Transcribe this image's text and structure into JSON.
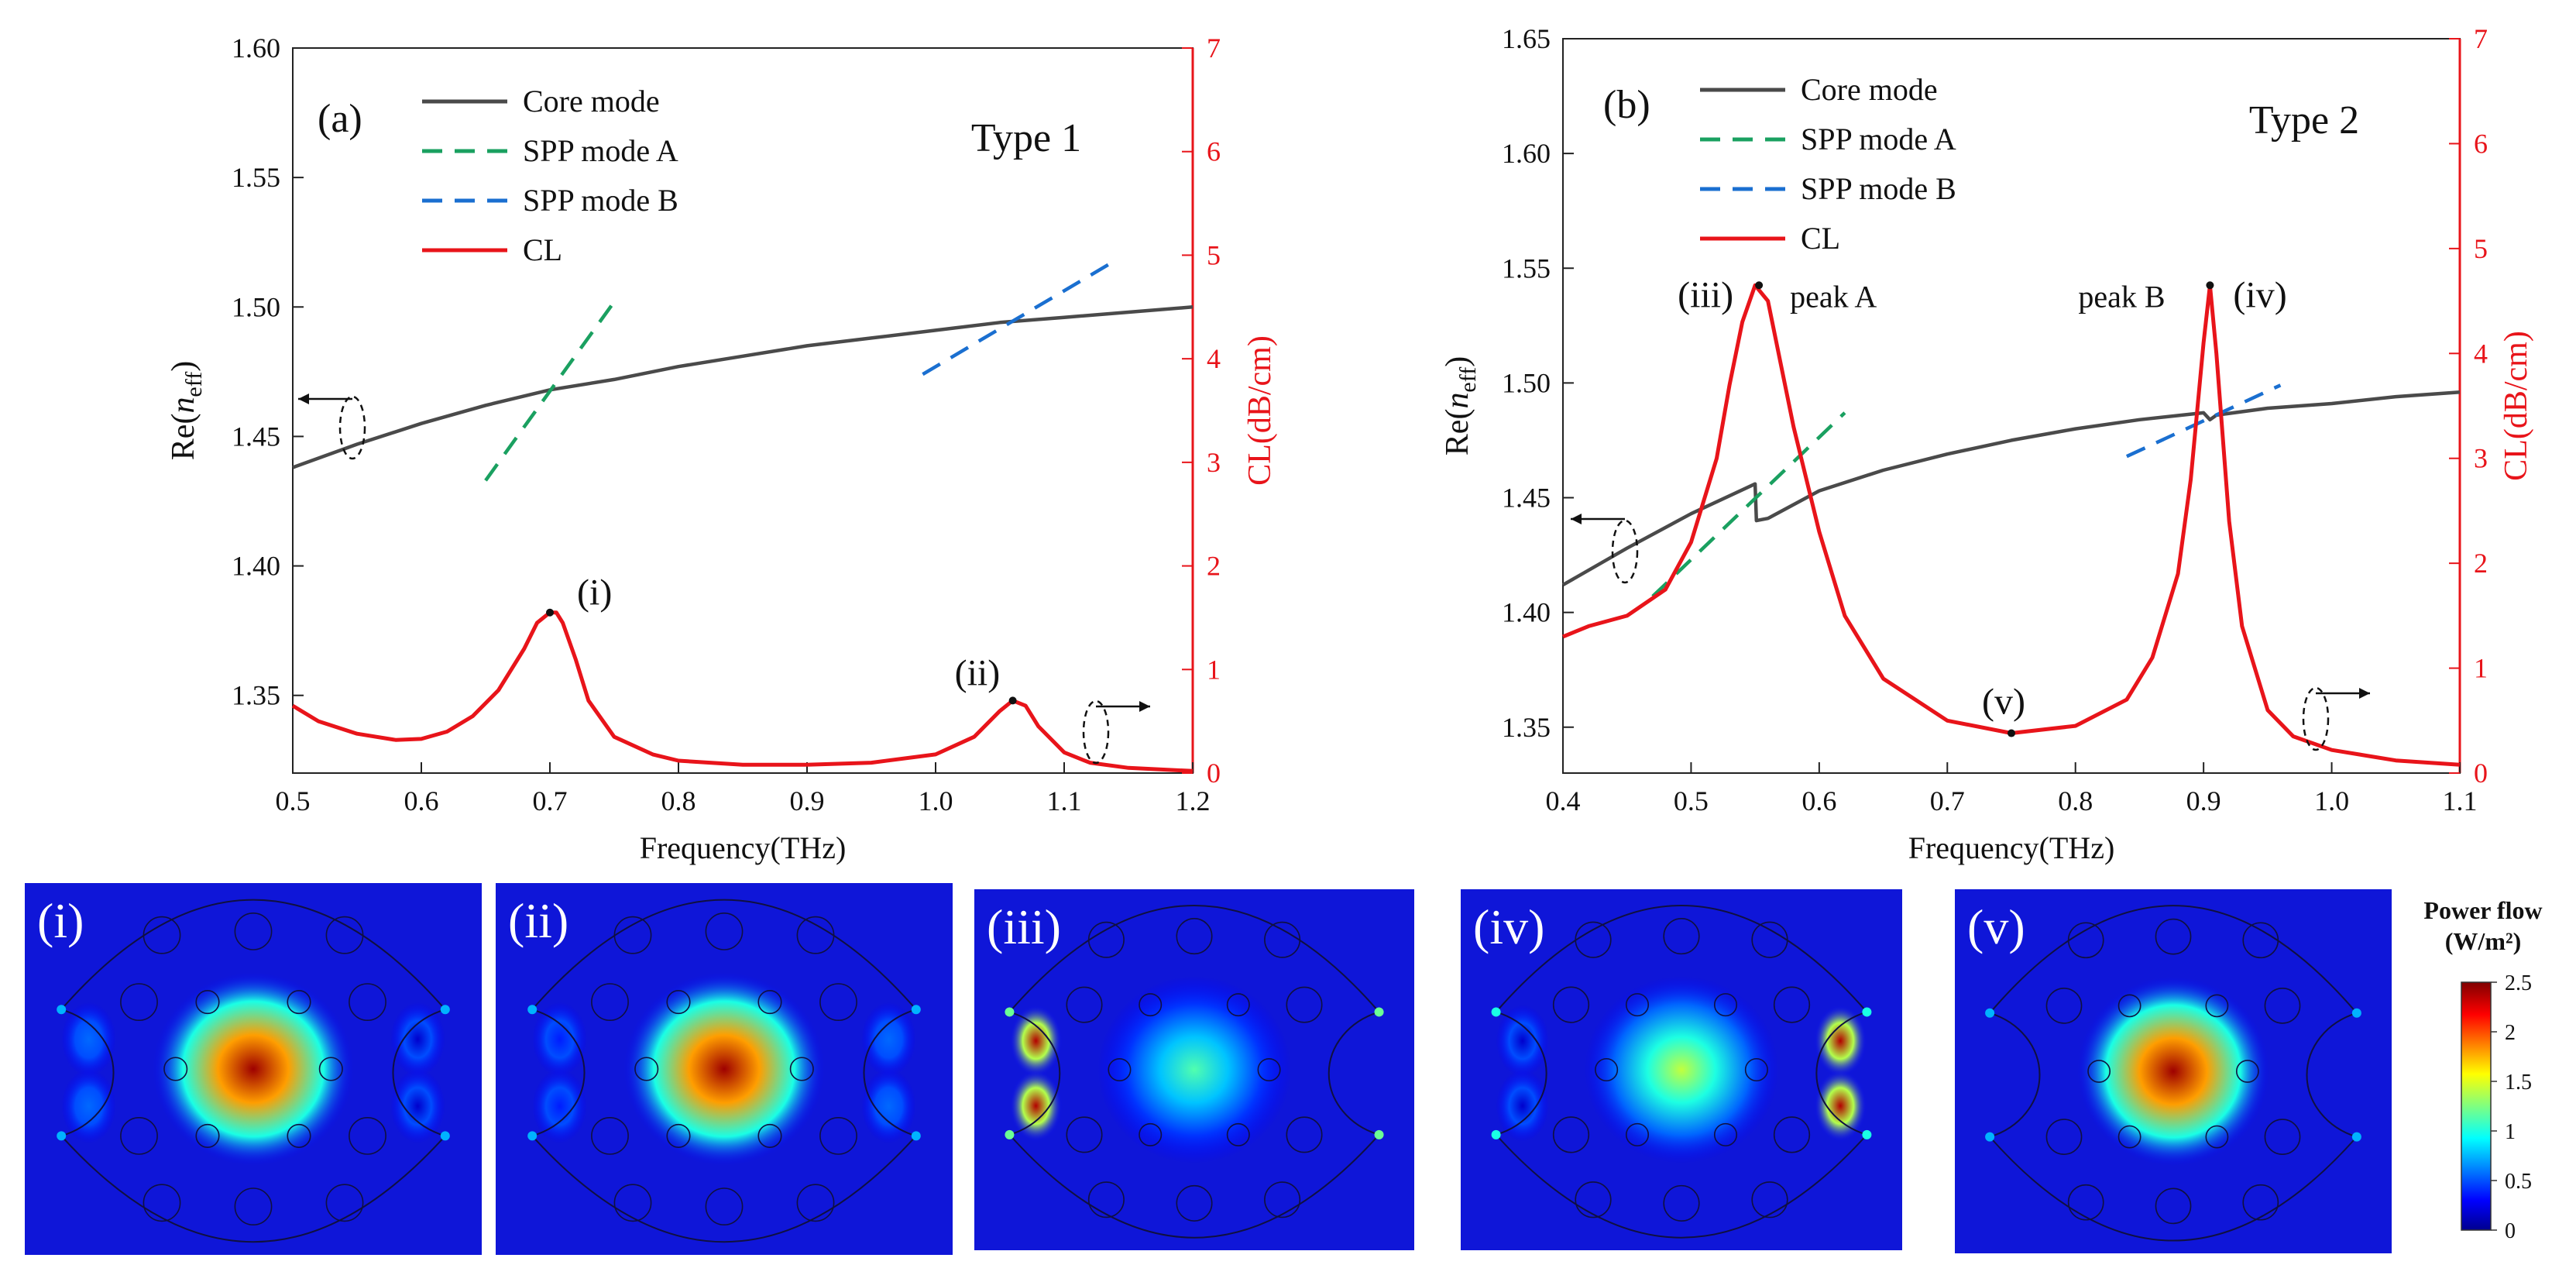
{
  "chart_data": [
    {
      "type": "line",
      "panel_label": "(a)",
      "title": "Type 1",
      "xlabel": "Frequency(THz)",
      "ylabel_left": {
        "main": "Re(",
        "italic": "n",
        "sub": "eff",
        "close": ")"
      },
      "ylabel_right": "CL(dB/cm)",
      "xlim": [
        0.5,
        1.2
      ],
      "ylim_left": [
        1.32,
        1.6
      ],
      "ylim_right": [
        0,
        7
      ],
      "x_ticks": [
        "0.5",
        "0.6",
        "0.7",
        "0.8",
        "0.9",
        "1.0",
        "1.1",
        "1.2"
      ],
      "y_ticks_left": [
        "1.35",
        "1.40",
        "1.45",
        "1.50",
        "1.55",
        "1.60"
      ],
      "y_ticks_right": [
        "0",
        "1",
        "2",
        "3",
        "4",
        "5",
        "6",
        "7"
      ],
      "legend": [
        "Core mode",
        "SPP mode A",
        "SPP mode B",
        "CL"
      ],
      "series": [
        {
          "name": "Core mode",
          "axis": "left",
          "color": "#4a4a4a",
          "x": [
            0.5,
            0.55,
            0.6,
            0.65,
            0.7,
            0.75,
            0.8,
            0.85,
            0.9,
            0.95,
            1.0,
            1.05,
            1.1,
            1.15,
            1.2
          ],
          "y": [
            1.438,
            1.447,
            1.455,
            1.462,
            1.468,
            1.472,
            1.477,
            1.481,
            1.485,
            1.488,
            1.491,
            1.494,
            1.496,
            1.498,
            1.5
          ]
        },
        {
          "name": "SPP mode A",
          "axis": "left",
          "color": "#1aa060",
          "x": [
            0.65,
            0.75
          ],
          "y": [
            1.433,
            1.502
          ]
        },
        {
          "name": "SPP mode B",
          "axis": "left",
          "color": "#1a6fd0",
          "x": [
            0.99,
            1.14
          ],
          "y": [
            1.474,
            1.518
          ]
        },
        {
          "name": "CL",
          "axis": "right",
          "color": "#e8141a",
          "x": [
            0.5,
            0.52,
            0.55,
            0.58,
            0.6,
            0.62,
            0.64,
            0.66,
            0.68,
            0.69,
            0.7,
            0.705,
            0.71,
            0.72,
            0.73,
            0.75,
            0.78,
            0.8,
            0.85,
            0.9,
            0.95,
            1.0,
            1.03,
            1.05,
            1.06,
            1.07,
            1.08,
            1.1,
            1.12,
            1.15,
            1.2
          ],
          "y": [
            0.65,
            0.5,
            0.38,
            0.32,
            0.33,
            0.4,
            0.55,
            0.8,
            1.2,
            1.45,
            1.55,
            1.55,
            1.45,
            1.1,
            0.7,
            0.35,
            0.18,
            0.12,
            0.08,
            0.08,
            0.1,
            0.18,
            0.35,
            0.6,
            0.7,
            0.65,
            0.45,
            0.2,
            0.1,
            0.05,
            0.02
          ]
        }
      ],
      "annotations": [
        {
          "text": "(i)",
          "x": 0.7,
          "y_right": 1.55
        },
        {
          "text": "(ii)",
          "x": 1.06,
          "y_right": 0.7
        }
      ]
    },
    {
      "type": "line",
      "panel_label": "(b)",
      "title": "Type 2",
      "xlabel": "Frequency(THz)",
      "ylabel_left": {
        "main": "Re(",
        "italic": "n",
        "sub": "eff",
        "close": ")"
      },
      "ylabel_right": "CL(dB/cm)",
      "xlim": [
        0.4,
        1.1
      ],
      "ylim_left": [
        1.33,
        1.65
      ],
      "ylim_right": [
        0,
        7
      ],
      "x_ticks": [
        "0.4",
        "0.5",
        "0.6",
        "0.7",
        "0.8",
        "0.9",
        "1.0",
        "1.1"
      ],
      "y_ticks_left": [
        "1.35",
        "1.40",
        "1.45",
        "1.50",
        "1.55",
        "1.60",
        "1.65"
      ],
      "y_ticks_right": [
        "0",
        "1",
        "2",
        "3",
        "4",
        "5",
        "6",
        "7"
      ],
      "legend": [
        "Core mode",
        "SPP mode A",
        "SPP mode B",
        "CL"
      ],
      "series": [
        {
          "name": "Core mode",
          "axis": "left",
          "color": "#4a4a4a",
          "x": [
            0.4,
            0.45,
            0.5,
            0.55,
            0.551,
            0.56,
            0.6,
            0.65,
            0.7,
            0.75,
            0.8,
            0.85,
            0.9,
            0.905,
            0.91,
            0.95,
            1.0,
            1.05,
            1.1
          ],
          "y": [
            1.412,
            1.428,
            1.443,
            1.456,
            1.44,
            1.441,
            1.453,
            1.462,
            1.469,
            1.475,
            1.48,
            1.484,
            1.487,
            1.484,
            1.486,
            1.489,
            1.491,
            1.494,
            1.496
          ]
        },
        {
          "name": "SPP mode A",
          "axis": "left",
          "color": "#1aa060",
          "x": [
            0.47,
            0.62
          ],
          "y": [
            1.407,
            1.487
          ]
        },
        {
          "name": "SPP mode B",
          "axis": "left",
          "color": "#1a6fd0",
          "x": [
            0.84,
            0.96
          ],
          "y": [
            1.468,
            1.499
          ]
        },
        {
          "name": "CL",
          "axis": "right",
          "color": "#e8141a",
          "x": [
            0.4,
            0.42,
            0.45,
            0.48,
            0.5,
            0.52,
            0.53,
            0.54,
            0.55,
            0.56,
            0.57,
            0.58,
            0.6,
            0.62,
            0.65,
            0.7,
            0.75,
            0.8,
            0.84,
            0.86,
            0.88,
            0.89,
            0.9,
            0.905,
            0.91,
            0.92,
            0.93,
            0.95,
            0.97,
            1.0,
            1.05,
            1.1
          ],
          "y": [
            1.3,
            1.4,
            1.5,
            1.75,
            2.2,
            3.0,
            3.7,
            4.3,
            4.65,
            4.5,
            3.9,
            3.3,
            2.3,
            1.5,
            0.9,
            0.5,
            0.38,
            0.45,
            0.7,
            1.1,
            1.9,
            2.8,
            4.1,
            4.65,
            4.0,
            2.4,
            1.4,
            0.6,
            0.35,
            0.22,
            0.12,
            0.08
          ]
        }
      ],
      "annotations": [
        {
          "text": "(iii)",
          "x": 0.553,
          "y_right": 4.65
        },
        {
          "text": "peak A",
          "x": 0.553,
          "y_right": 4.65
        },
        {
          "text": "(iv)",
          "x": 0.905,
          "y_right": 4.65
        },
        {
          "text": "peak B",
          "x": 0.905,
          "y_right": 4.65
        },
        {
          "text": "(v)",
          "x": 0.75,
          "y_right": 0.38
        }
      ]
    }
  ],
  "field_maps": [
    {
      "label": "(i)",
      "core_intensity": 2.5,
      "left_edge_intensity": 0.6,
      "right_edge_intensity": 0.2,
      "corner_glow": 0.3
    },
    {
      "label": "(ii)",
      "core_intensity": 2.5,
      "left_edge_intensity": 0.4,
      "right_edge_intensity": 0.6,
      "corner_glow": 0.3
    },
    {
      "label": "(iii)",
      "core_intensity": 1.1,
      "left_edge_intensity": 2.5,
      "right_edge_intensity": 0.1,
      "corner_glow": 1.2
    },
    {
      "label": "(iv)",
      "core_intensity": 1.4,
      "left_edge_intensity": 0.2,
      "right_edge_intensity": 2.5,
      "corner_glow": 1.0
    },
    {
      "label": "(v)",
      "core_intensity": 2.5,
      "left_edge_intensity": 0.1,
      "right_edge_intensity": 0.1,
      "corner_glow": 0.4
    }
  ],
  "colorbar": {
    "title_line1": "Power flow",
    "title_line2": "(W/m²)",
    "ticks": [
      "2.5",
      "2",
      "1.5",
      "1",
      "0.5",
      "0"
    ],
    "min": 0,
    "max": 2.5
  },
  "colors": {
    "core": "#4a4a4a",
    "spp_a": "#1aa060",
    "spp_b": "#1a6fd0",
    "cl": "#e8141a",
    "field_bg": "#0f16d8"
  }
}
